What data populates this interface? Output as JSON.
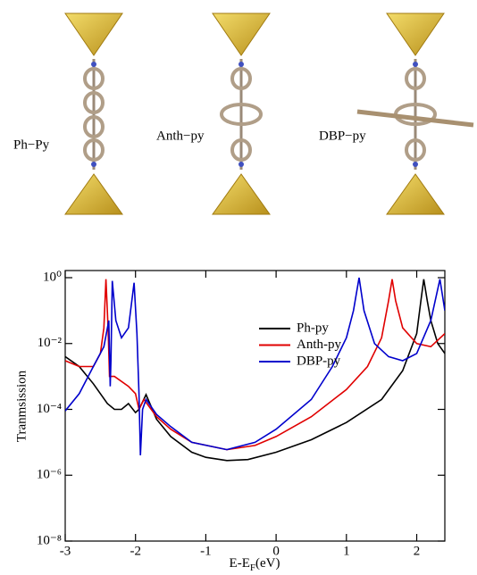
{
  "structure_labels": [
    "Ph−Py",
    "Anth−py",
    "DBP−py"
  ],
  "chart_data": {
    "type": "line",
    "xlabel": [
      "E-E",
      "F",
      "(eV)"
    ],
    "ylabel": "Tranmsission",
    "log_y": true,
    "xlim": [
      -3,
      2.4
    ],
    "ylim": [
      1e-08,
      1
    ],
    "xticks": [
      -3,
      -2,
      -1,
      0,
      1,
      2
    ],
    "yticks": [
      {
        "value": 1e-08,
        "label": "10⁻⁸"
      },
      {
        "value": 1e-06,
        "label": "10⁻⁶"
      },
      {
        "value": 0.0001,
        "label": "10⁻⁴"
      },
      {
        "value": 0.01,
        "label": "10⁻²"
      },
      {
        "value": 1,
        "label": "10⁰"
      }
    ],
    "legend": "upper right",
    "series": [
      {
        "name": "Ph-py",
        "color": "#000000",
        "x": [
          -3,
          -2.8,
          -2.6,
          -2.4,
          -2.3,
          -2.2,
          -2.1,
          -2.0,
          -1.95,
          -1.85,
          -1.7,
          -1.5,
          -1.2,
          -1.0,
          -0.7,
          -0.4,
          0,
          0.5,
          1.0,
          1.5,
          1.8,
          2.0,
          2.06,
          2.1,
          2.15,
          2.2,
          2.3,
          2.4
        ],
        "values": [
          0.004,
          0.002,
          0.0006,
          0.00015,
          0.0001,
          0.0001,
          0.00015,
          8e-05,
          0.0001,
          0.00028,
          5e-05,
          1.5e-05,
          5e-06,
          3.5e-06,
          2.8e-06,
          3e-06,
          5e-06,
          1.2e-05,
          4e-05,
          0.0002,
          0.0015,
          0.02,
          0.2,
          0.9,
          0.2,
          0.05,
          0.01,
          0.005
        ]
      },
      {
        "name": "Anth-py",
        "color": "#e00000",
        "x": [
          -3,
          -2.8,
          -2.6,
          -2.5,
          -2.45,
          -2.42,
          -2.39,
          -2.37,
          -2.3,
          -2.1,
          -2.0,
          -1.95,
          -1.88,
          -1.7,
          -1.5,
          -1.2,
          -0.7,
          -0.3,
          0,
          0.5,
          1.0,
          1.3,
          1.5,
          1.6,
          1.65,
          1.7,
          1.8,
          2.0,
          2.2,
          2.4
        ],
        "values": [
          0.003,
          0.002,
          0.002,
          0.005,
          0.03,
          0.9,
          0.03,
          0.001,
          0.001,
          0.0005,
          0.0003,
          0.0001,
          0.0002,
          6e-05,
          2.5e-05,
          1e-05,
          6e-06,
          8e-06,
          1.5e-05,
          6e-05,
          0.0004,
          0.002,
          0.015,
          0.2,
          0.9,
          0.2,
          0.03,
          0.01,
          0.008,
          0.02
        ]
      },
      {
        "name": "DBP-py",
        "color": "#0000cc",
        "x": [
          -3,
          -2.8,
          -2.6,
          -2.45,
          -2.38,
          -2.36,
          -2.35,
          -2.33,
          -2.28,
          -2.2,
          -2.1,
          -2.02,
          -1.98,
          -1.95,
          -1.93,
          -1.9,
          -1.85,
          -1.7,
          -1.5,
          -1.2,
          -0.7,
          -0.3,
          0,
          0.5,
          0.8,
          1.0,
          1.1,
          1.18,
          1.25,
          1.4,
          1.6,
          1.8,
          2.0,
          2.2,
          2.33,
          2.4
        ],
        "values": [
          9e-05,
          0.0003,
          0.002,
          0.008,
          0.05,
          0.0005,
          0.003,
          0.8,
          0.05,
          0.015,
          0.03,
          0.7,
          0.02,
          0.0003,
          4e-06,
          0.0001,
          0.0002,
          7e-05,
          3e-05,
          1e-05,
          6e-06,
          1e-05,
          2.5e-05,
          0.0002,
          0.002,
          0.015,
          0.1,
          1,
          0.1,
          0.01,
          0.004,
          0.003,
          0.005,
          0.05,
          0.9,
          0.1
        ]
      }
    ]
  }
}
